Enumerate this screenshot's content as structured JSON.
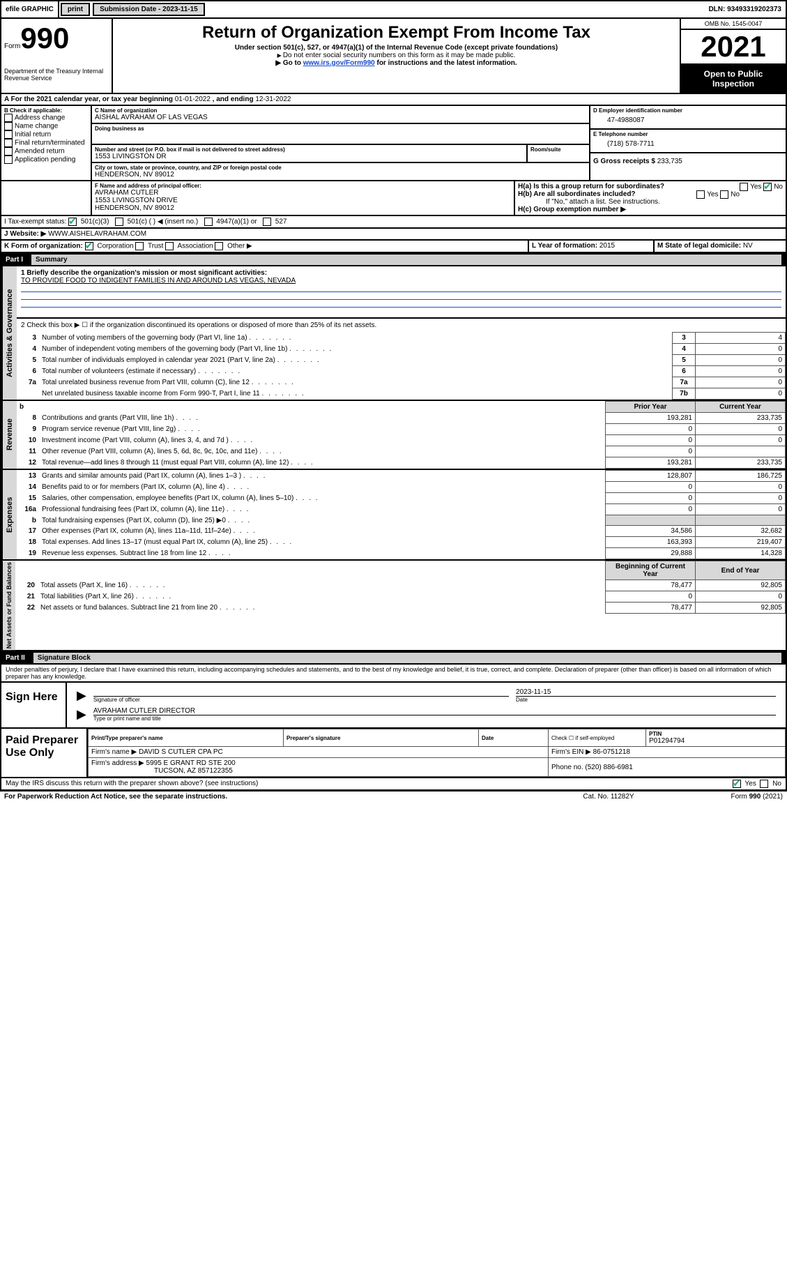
{
  "colors": {
    "header_black": "#000000",
    "shaded_gray": "#d8d8d8",
    "link_blue": "#1a4bcc",
    "check_green": "#2a7a3a",
    "white": "#ffffff"
  },
  "top_bar": {
    "efile": "efile GRAPHIC",
    "print": "print",
    "submission_label": "Submission Date - ",
    "submission_date": "2023-11-15",
    "dln_label": "DLN: ",
    "dln": "93493319202373"
  },
  "header": {
    "form_label": "Form",
    "form_number": "990",
    "title": "Return of Organization Exempt From Income Tax",
    "subtitle": "Under section 501(c), 527, or 4947(a)(1) of the Internal Revenue Code (except private foundations)",
    "note1": "Do not enter social security numbers on this form as it may be made public.",
    "note2_pre": "Go to ",
    "note2_link": "www.irs.gov/Form990",
    "note2_post": " for instructions and the latest information.",
    "dept": "Department of the Treasury\nInternal Revenue Service",
    "omb": "OMB No. 1545-0047",
    "year": "2021",
    "open_public": "Open to Public Inspection"
  },
  "period": {
    "label_a": "A For the 2021 calendar year, or tax year beginning ",
    "begin": "01-01-2022",
    "mid": " , and ending ",
    "end": "12-31-2022"
  },
  "section_b": {
    "title": "B Check if applicable:",
    "items": [
      "Address change",
      "Name change",
      "Initial return",
      "Final return/terminated",
      "Amended return",
      "Application pending"
    ]
  },
  "section_c": {
    "name_label": "C Name of organization",
    "name": "AISHAL AVRAHAM OF LAS VEGAS",
    "dba_label": "Doing business as",
    "street_label": "Number and street (or P.O. box if mail is not delivered to street address)",
    "room_label": "Room/suite",
    "street": "1553 LIVINGSTON DR",
    "city_label": "City or town, state or province, country, and ZIP or foreign postal code",
    "city": "HENDERSON, NV  89012"
  },
  "section_d": {
    "label": "D Employer identification number",
    "value": "47-4988087"
  },
  "section_e": {
    "label": "E Telephone number",
    "value": "(718) 578-7711"
  },
  "section_g": {
    "label": "G Gross receipts $",
    "value": "233,735"
  },
  "section_f": {
    "label": "F Name and address of principal officer:",
    "name": "AVRAHAM CUTLER",
    "street": "1553 LIVINGSTON DRIVE",
    "city": "HENDERSON, NV  89012"
  },
  "section_h": {
    "ha": "H(a)  Is this a group return for subordinates?",
    "hb": "H(b)  Are all subordinates included?",
    "hb_note": "If \"No,\" attach a list. See instructions.",
    "hc": "H(c)  Group exemption number ▶",
    "yes": "Yes",
    "no": "No"
  },
  "section_i": {
    "label": "I   Tax-exempt status:",
    "opt1": "501(c)(3)",
    "opt2": "501(c) (  ) ◀ (insert no.)",
    "opt3": "4947(a)(1) or",
    "opt4": "527"
  },
  "section_j": {
    "label": "J   Website: ▶",
    "value": "WWW.AISHELAVRAHAM.COM"
  },
  "section_k": {
    "label": "K Form of organization:",
    "opts": [
      "Corporation",
      "Trust",
      "Association",
      "Other ▶"
    ]
  },
  "section_l": {
    "label": "L Year of formation: ",
    "value": "2015"
  },
  "section_m": {
    "label": "M State of legal domicile: ",
    "value": "NV"
  },
  "part1": {
    "label": "Part I",
    "title": "Summary",
    "line1_label": "1  Briefly describe the organization's mission or most significant activities:",
    "line1_value": "TO PROVIDE FOOD TO INDIGENT FAMILIES IN AND AROUND LAS VEGAS, NEVADA",
    "line2": "2   Check this box ▶ ☐  if the organization discontinued its operations or disposed of more than 25% of its net assets.",
    "governance_rows": [
      {
        "n": "3",
        "text": "Number of voting members of the governing body (Part VI, line 1a)",
        "box": "3",
        "val": "4"
      },
      {
        "n": "4",
        "text": "Number of independent voting members of the governing body (Part VI, line 1b)",
        "box": "4",
        "val": "0"
      },
      {
        "n": "5",
        "text": "Total number of individuals employed in calendar year 2021 (Part V, line 2a)",
        "box": "5",
        "val": "0"
      },
      {
        "n": "6",
        "text": "Total number of volunteers (estimate if necessary)",
        "box": "6",
        "val": "0"
      },
      {
        "n": "7a",
        "text": "Total unrelated business revenue from Part VIII, column (C), line 12",
        "box": "7a",
        "val": "0"
      },
      {
        "n": "",
        "text": "Net unrelated business taxable income from Form 990-T, Part I, line 11",
        "box": "7b",
        "val": "0"
      }
    ],
    "col_headers": {
      "b": "b",
      "prior": "Prior Year",
      "current": "Current Year"
    },
    "revenue_rows": [
      {
        "n": "8",
        "text": "Contributions and grants (Part VIII, line 1h)",
        "prior": "193,281",
        "cur": "233,735"
      },
      {
        "n": "9",
        "text": "Program service revenue (Part VIII, line 2g)",
        "prior": "0",
        "cur": "0"
      },
      {
        "n": "10",
        "text": "Investment income (Part VIII, column (A), lines 3, 4, and 7d )",
        "prior": "0",
        "cur": "0"
      },
      {
        "n": "11",
        "text": "Other revenue (Part VIII, column (A), lines 5, 6d, 8c, 9c, 10c, and 11e)",
        "prior": "0",
        "cur": ""
      },
      {
        "n": "12",
        "text": "Total revenue—add lines 8 through 11 (must equal Part VIII, column (A), line 12)",
        "prior": "193,281",
        "cur": "233,735"
      }
    ],
    "expense_rows": [
      {
        "n": "13",
        "text": "Grants and similar amounts paid (Part IX, column (A), lines 1–3 )",
        "prior": "128,807",
        "cur": "186,725"
      },
      {
        "n": "14",
        "text": "Benefits paid to or for members (Part IX, column (A), line 4)",
        "prior": "0",
        "cur": "0"
      },
      {
        "n": "15",
        "text": "Salaries, other compensation, employee benefits (Part IX, column (A), lines 5–10)",
        "prior": "0",
        "cur": "0"
      },
      {
        "n": "16a",
        "text": "Professional fundraising fees (Part IX, column (A), line 11e)",
        "prior": "0",
        "cur": "0"
      },
      {
        "n": "b",
        "text": "Total fundraising expenses (Part IX, column (D), line 25) ▶0",
        "prior": "",
        "cur": "",
        "shaded": true
      },
      {
        "n": "17",
        "text": "Other expenses (Part IX, column (A), lines 11a–11d, 11f–24e)",
        "prior": "34,586",
        "cur": "32,682"
      },
      {
        "n": "18",
        "text": "Total expenses. Add lines 13–17 (must equal Part IX, column (A), line 25)",
        "prior": "163,393",
        "cur": "219,407"
      },
      {
        "n": "19",
        "text": "Revenue less expenses. Subtract line 18 from line 12",
        "prior": "29,888",
        "cur": "14,328"
      }
    ],
    "balance_headers": {
      "begin": "Beginning of Current Year",
      "end": "End of Year"
    },
    "balance_rows": [
      {
        "n": "20",
        "text": "Total assets (Part X, line 16)",
        "prior": "78,477",
        "cur": "92,805"
      },
      {
        "n": "21",
        "text": "Total liabilities (Part X, line 26)",
        "prior": "0",
        "cur": "0"
      },
      {
        "n": "22",
        "text": "Net assets or fund balances. Subtract line 21 from line 20",
        "prior": "78,477",
        "cur": "92,805"
      }
    ]
  },
  "part2": {
    "label": "Part II",
    "title": "Signature Block",
    "penalty": "Under penalties of perjury, I declare that I have examined this return, including accompanying schedules and statements, and to the best of my knowledge and belief, it is true, correct, and complete. Declaration of preparer (other than officer) is based on all information of which preparer has any knowledge.",
    "sign_here": "Sign Here",
    "sig_officer": "Signature of officer",
    "sig_date_label": "Date",
    "sig_date": "2023-11-15",
    "officer_name": "AVRAHAM CUTLER  DIRECTOR",
    "type_name": "Type or print name and title",
    "paid_prep": "Paid Preparer Use Only",
    "prep_name_label": "Print/Type preparer's name",
    "prep_sig_label": "Preparer's signature",
    "date_label": "Date",
    "check_if": "Check ☐ if self-employed",
    "ptin_label": "PTIN",
    "ptin": "P01294794",
    "firm_name_label": "Firm's name   ▶",
    "firm_name": "DAVID S CUTLER CPA PC",
    "firm_ein_label": "Firm's EIN ▶",
    "firm_ein": "86-0751218",
    "firm_addr_label": "Firm's address ▶",
    "firm_addr1": "5995 E GRANT RD STE 200",
    "firm_addr2": "TUCSON, AZ  857122355",
    "phone_label": "Phone no.",
    "phone": "(520) 886-6981",
    "may_irs": "May the IRS discuss this return with the preparer shown above? (see instructions)",
    "paperwork": "For Paperwork Reduction Act Notice, see the separate instructions.",
    "cat": "Cat. No. 11282Y",
    "form_foot": "Form 990 (2021)"
  },
  "side_labels": {
    "governance": "Activities & Governance",
    "revenue": "Revenue",
    "expenses": "Expenses",
    "balances": "Net Assets or\nFund Balances"
  }
}
